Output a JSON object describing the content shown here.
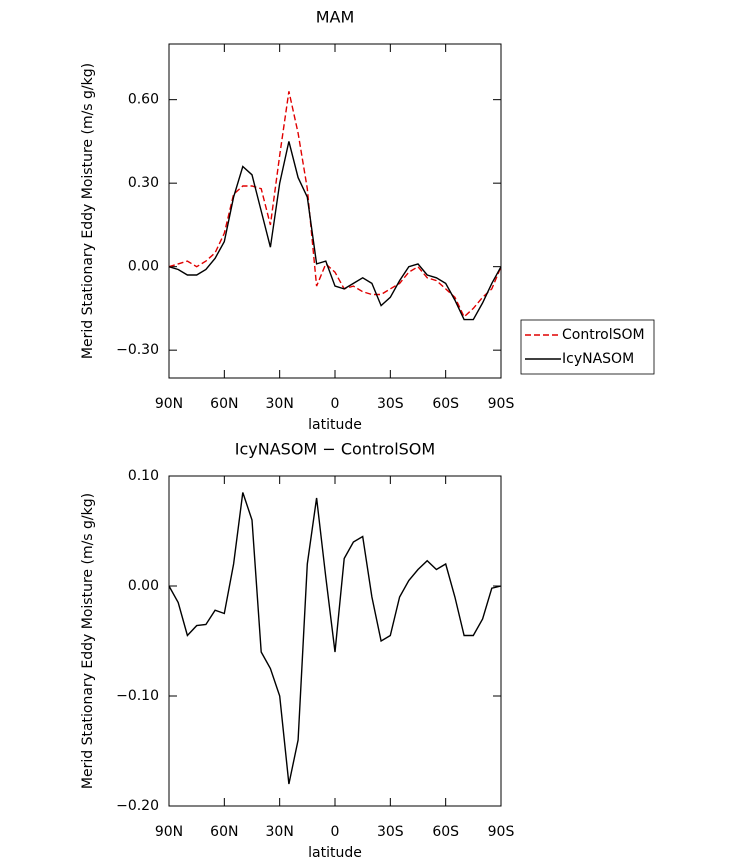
{
  "chart_data": [
    {
      "type": "line",
      "title": "MAM",
      "xlabel": "latitude",
      "ylabel": "Merid Stationary Eddy Moisture (m/s g/kg)",
      "x": [
        90,
        85,
        80,
        75,
        70,
        65,
        60,
        55,
        50,
        45,
        40,
        35,
        30,
        25,
        20,
        15,
        10,
        5,
        0,
        -5,
        -10,
        -15,
        -20,
        -25,
        -30,
        -35,
        -40,
        -45,
        -50,
        -55,
        -60,
        -65,
        -70,
        -75,
        -80,
        -85,
        -90
      ],
      "xlim": [
        90,
        -90
      ],
      "xticks": [
        {
          "value": 90,
          "label": "90N"
        },
        {
          "value": 60,
          "label": "60N"
        },
        {
          "value": 30,
          "label": "30N"
        },
        0,
        {
          "value": -30,
          "label": "30S"
        },
        {
          "value": -60,
          "label": "60S"
        },
        {
          "value": -90,
          "label": "90S"
        }
      ],
      "ylim": [
        -0.4,
        0.8
      ],
      "yticks": [
        {
          "value": 0.6,
          "label": "0.60"
        },
        {
          "value": 0.3,
          "label": "0.30"
        },
        {
          "value": 0,
          "label": "0.00"
        },
        {
          "value": -0.3,
          "label": "−0.30"
        }
      ],
      "legend": "right",
      "series": [
        {
          "name": "ControlSOM",
          "color": "#e00000",
          "style": "dashed",
          "values": [
            0.0,
            0.01,
            0.02,
            0.0,
            0.02,
            0.05,
            0.12,
            0.26,
            0.29,
            0.29,
            0.28,
            0.15,
            0.4,
            0.63,
            0.48,
            0.28,
            -0.07,
            0.01,
            -0.02,
            -0.08,
            -0.07,
            -0.09,
            -0.1,
            -0.1,
            -0.08,
            -0.06,
            -0.02,
            0.0,
            -0.04,
            -0.05,
            -0.08,
            -0.11,
            -0.18,
            -0.15,
            -0.11,
            -0.08,
            0.0
          ]
        },
        {
          "name": "IcyNASOM",
          "color": "#000000",
          "style": "solid",
          "values": [
            0.0,
            -0.01,
            -0.03,
            -0.03,
            -0.01,
            0.03,
            0.09,
            0.25,
            0.36,
            0.33,
            0.2,
            0.07,
            0.3,
            0.45,
            0.32,
            0.25,
            0.01,
            0.02,
            -0.07,
            -0.08,
            -0.06,
            -0.04,
            -0.06,
            -0.14,
            -0.11,
            -0.05,
            0.0,
            0.01,
            -0.03,
            -0.04,
            -0.06,
            -0.12,
            -0.19,
            -0.19,
            -0.13,
            -0.06,
            0.0
          ]
        }
      ]
    },
    {
      "type": "line",
      "title": "IcyNASOM − ControlSOM",
      "xlabel": "latitude",
      "ylabel": "Merid Stationary Eddy Moisture (m/s g/kg)",
      "x": [
        90,
        85,
        80,
        75,
        70,
        65,
        60,
        55,
        50,
        45,
        40,
        35,
        30,
        25,
        20,
        15,
        10,
        5,
        0,
        -5,
        -10,
        -15,
        -20,
        -25,
        -30,
        -35,
        -40,
        -45,
        -50,
        -55,
        -60,
        -65,
        -70,
        -75,
        -80,
        -85,
        -90
      ],
      "xlim": [
        90,
        -90
      ],
      "xticks": [
        {
          "value": 90,
          "label": "90N"
        },
        {
          "value": 60,
          "label": "60N"
        },
        {
          "value": 30,
          "label": "30N"
        },
        0,
        {
          "value": -30,
          "label": "30S"
        },
        {
          "value": -60,
          "label": "60S"
        },
        {
          "value": -90,
          "label": "90S"
        }
      ],
      "ylim": [
        -0.2,
        0.1
      ],
      "yticks": [
        {
          "value": 0.1,
          "label": "0.10"
        },
        {
          "value": 0,
          "label": "0.00"
        },
        {
          "value": -0.1,
          "label": "−0.10"
        },
        {
          "value": -0.2,
          "label": "−0.20"
        }
      ],
      "series": [
        {
          "color": "#000000",
          "style": "solid",
          "values": [
            0.0,
            -0.015,
            -0.045,
            -0.036,
            -0.035,
            -0.022,
            -0.025,
            0.02,
            0.085,
            0.06,
            -0.06,
            -0.075,
            -0.1,
            -0.18,
            -0.14,
            0.02,
            0.08,
            0.008,
            -0.06,
            0.025,
            0.04,
            0.045,
            -0.01,
            -0.05,
            -0.045,
            -0.01,
            0.005,
            0.015,
            0.023,
            0.015,
            0.02,
            -0.01,
            -0.045,
            -0.045,
            -0.03,
            -0.002,
            0.0
          ]
        }
      ]
    }
  ]
}
